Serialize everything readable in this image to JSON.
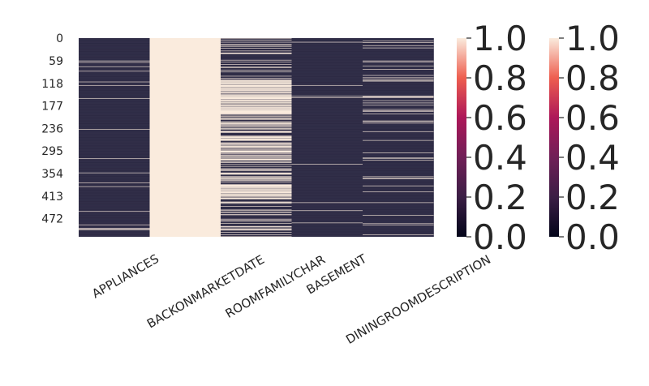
{
  "chart_data": {
    "type": "heatmap",
    "title": "",
    "xlabel": "",
    "ylabel": "",
    "x_categories": [
      "APPLIANCES",
      "BACKONMARKETDATE",
      "ROOMFAMILYCHAR",
      "BASEMENT",
      "DININGROOMDESCRIPTION"
    ],
    "y_tick_labels": [
      "0",
      "59",
      "118",
      "177",
      "236",
      "295",
      "354",
      "413",
      "472"
    ],
    "n_rows": 520,
    "value_range": [
      0.0,
      1.0
    ],
    "colormap": "rocket",
    "column_missing_fraction": {
      "APPLIANCES": 0.03,
      "BACKONMARKETDATE": 1.0,
      "ROOMFAMILYCHAR": 0.45,
      "BASEMENT": 0.01,
      "DININGROOMDESCRIPTION": 0.08
    },
    "colorbars": [
      {
        "ticks": [
          "0.0",
          "0.2",
          "0.4",
          "0.6",
          "0.8",
          "1.0"
        ]
      },
      {
        "ticks": [
          "0.0",
          "0.2",
          "0.4",
          "0.6",
          "0.8",
          "1.0"
        ]
      }
    ],
    "colors": {
      "low": "#03051a",
      "mid": "#8e1d5b",
      "high": "#faebdd",
      "present_cell": "#2d2a44"
    },
    "grid": false
  }
}
